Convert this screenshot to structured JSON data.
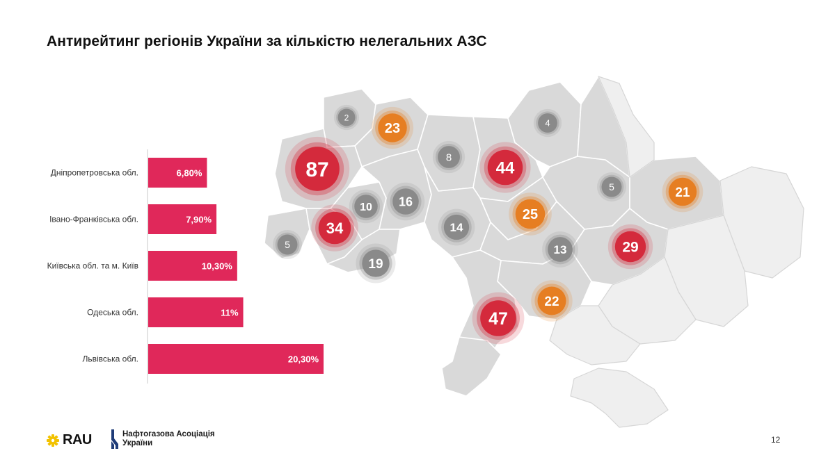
{
  "slide": {
    "title": "Антирейтинг регіонів України за кількістю нелегальних АЗС",
    "page_number": "12"
  },
  "logos": {
    "rau": "RAU",
    "naftogaz_line1": "Нафтогазова Асоціація",
    "naftogaz_line2": "України"
  },
  "colors": {
    "bar": "#e0285a",
    "map_fill_active": "#d9d9d9",
    "map_fill_inactive": "#efefef",
    "map_border": "#ffffff",
    "bubble_red": "#d42a3c",
    "bubble_orange": "#e67e22",
    "bubble_gray": "#8a8a8a"
  },
  "chart_data": [
    {
      "type": "bar",
      "orientation": "horizontal",
      "categories": [
        "Дніпропетровська обл.",
        "Івано-Франківська обл.",
        "Київська обл. та м. Київ",
        "Одеська обл.",
        "Львівська обл."
      ],
      "values": [
        6.8,
        7.9,
        10.3,
        11,
        20.3
      ],
      "value_labels": [
        "6,80%",
        "7,90%",
        "10,30%",
        "11%",
        "20,30%"
      ],
      "unit": "%",
      "xlim": [
        0,
        20.3
      ],
      "grid": false,
      "legend": "none"
    },
    {
      "type": "bubble-map",
      "bubbles": [
        {
          "value": 87,
          "label": "87",
          "category": "red"
        },
        {
          "value": 2,
          "label": "2",
          "category": "gray"
        },
        {
          "value": 23,
          "label": "23",
          "category": "orange"
        },
        {
          "value": 8,
          "label": "8",
          "category": "gray"
        },
        {
          "value": 44,
          "label": "44",
          "category": "red"
        },
        {
          "value": 4,
          "label": "4",
          "category": "gray"
        },
        {
          "value": 10,
          "label": "10",
          "category": "gray"
        },
        {
          "value": 16,
          "label": "16",
          "category": "gray"
        },
        {
          "value": 34,
          "label": "34",
          "category": "red"
        },
        {
          "value": 5,
          "label": "5",
          "category": "gray"
        },
        {
          "value": 19,
          "label": "19",
          "category": "gray"
        },
        {
          "value": 14,
          "label": "14",
          "category": "gray"
        },
        {
          "value": 25,
          "label": "25",
          "category": "orange"
        },
        {
          "value": 5,
          "label": "5",
          "category": "gray"
        },
        {
          "value": 21,
          "label": "21",
          "category": "orange"
        },
        {
          "value": 13,
          "label": "13",
          "category": "gray"
        },
        {
          "value": 29,
          "label": "29",
          "category": "red"
        },
        {
          "value": 22,
          "label": "22",
          "category": "orange"
        },
        {
          "value": 47,
          "label": "47",
          "category": "red"
        }
      ]
    }
  ]
}
